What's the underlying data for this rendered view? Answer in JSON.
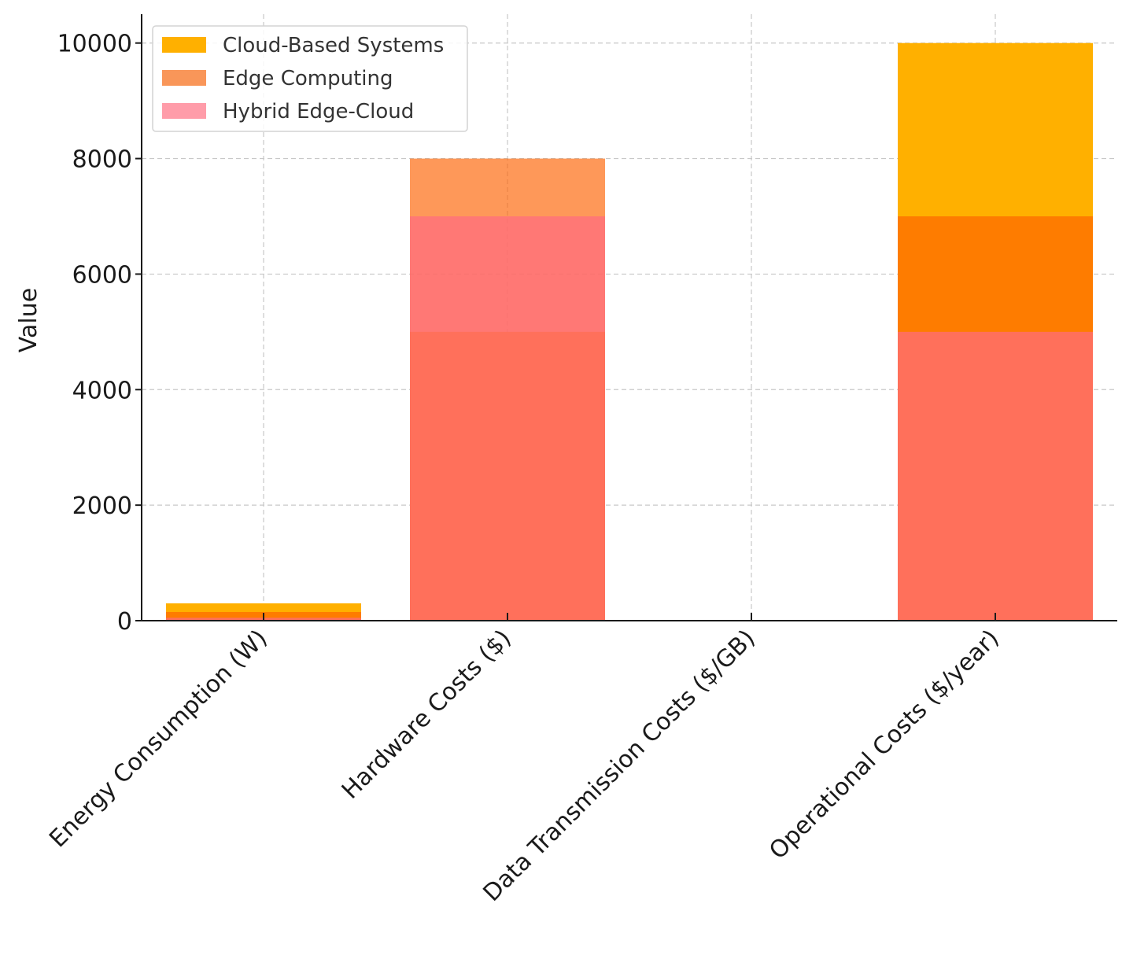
{
  "chart_data": {
    "type": "bar",
    "stacked": false,
    "bar_overlap": true,
    "categories": [
      "Energy Consumption (W)",
      "Hardware Costs ($)",
      "Data Transmission Costs ($/GB)",
      "Operational Costs ($/year)"
    ],
    "series": [
      {
        "name": "Cloud-Based Systems",
        "color": "#FFB000",
        "opacity": 1.0,
        "values": [
          300,
          5000,
          0.1,
          10000
        ]
      },
      {
        "name": "Edge Computing",
        "color": "#FE6100",
        "opacity": 0.65,
        "values": [
          150,
          8000,
          0.05,
          7000
        ]
      },
      {
        "name": "Hybrid Edge-Cloud",
        "color": "#FF6B81",
        "opacity": 0.7,
        "values": [
          50,
          7000,
          0.08,
          5000
        ]
      }
    ],
    "legend_swatch_colors": [
      "#FFB000",
      "#F99659",
      "#FF9CA9"
    ],
    "ylabel": "Value",
    "xlabel": "",
    "title": "",
    "ylim": [
      0,
      10500
    ],
    "yticks": [
      0,
      2000,
      4000,
      6000,
      8000,
      10000
    ],
    "ytick_labels": [
      "0",
      "2000",
      "4000",
      "6000",
      "8000",
      "10000"
    ],
    "grid": true,
    "legend_position": "top-left"
  }
}
